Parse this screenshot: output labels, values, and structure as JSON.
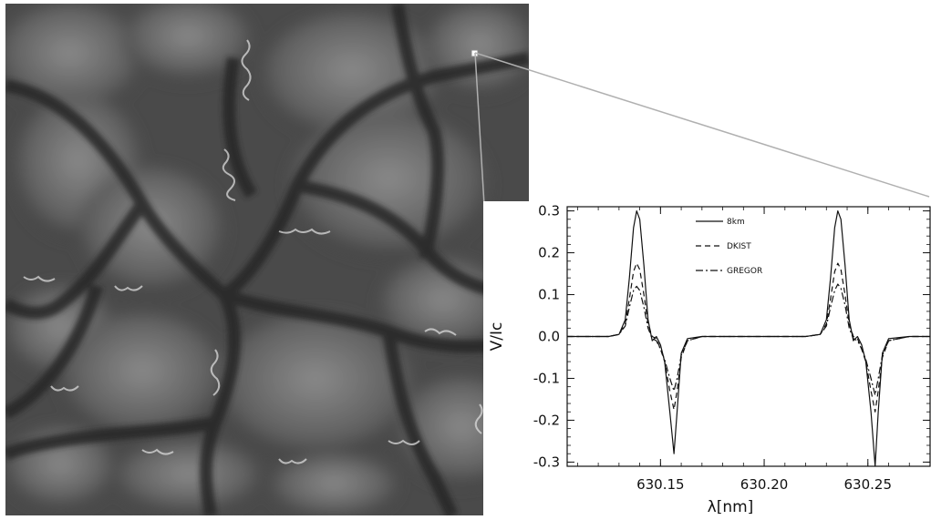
{
  "image": {
    "description_name": "solar-granulation-magnetogram"
  },
  "chart_data": {
    "type": "line",
    "title": "",
    "xlabel": "λ[nm]",
    "ylabel": "V/Ic",
    "xlim": [
      630.105,
      630.28
    ],
    "ylim": [
      -0.31,
      0.31
    ],
    "x_ticks": [
      630.15,
      630.2,
      630.25
    ],
    "x_tick_labels": [
      "630.15",
      "630.20",
      "630.25"
    ],
    "y_ticks": [
      -0.3,
      -0.2,
      -0.1,
      0.0,
      0.1,
      0.2,
      0.3
    ],
    "y_tick_labels": [
      "-0.3",
      "-0.2",
      "-0.1",
      "0.0",
      "0.1",
      "0.2",
      "0.3"
    ],
    "legend_position": "top-center",
    "grid": false,
    "series": [
      {
        "name": "8km",
        "style": "solid",
        "points": [
          [
            630.105,
            0.0
          ],
          [
            630.125,
            0.0
          ],
          [
            630.13,
            0.005
          ],
          [
            630.133,
            0.04
          ],
          [
            630.135,
            0.14
          ],
          [
            630.137,
            0.26
          ],
          [
            630.1385,
            0.3
          ],
          [
            630.14,
            0.28
          ],
          [
            630.142,
            0.17
          ],
          [
            630.144,
            0.04
          ],
          [
            630.146,
            -0.01
          ],
          [
            630.148,
            0.0
          ],
          [
            630.15,
            -0.02
          ],
          [
            630.152,
            -0.06
          ],
          [
            630.1545,
            -0.18
          ],
          [
            630.1565,
            -0.28
          ],
          [
            630.158,
            -0.18
          ],
          [
            630.16,
            -0.04
          ],
          [
            630.163,
            -0.005
          ],
          [
            630.17,
            0.0
          ],
          [
            630.22,
            0.0
          ],
          [
            630.227,
            0.005
          ],
          [
            630.23,
            0.04
          ],
          [
            630.232,
            0.14
          ],
          [
            630.234,
            0.26
          ],
          [
            630.2355,
            0.3
          ],
          [
            630.237,
            0.28
          ],
          [
            630.239,
            0.17
          ],
          [
            630.241,
            0.04
          ],
          [
            630.243,
            -0.01
          ],
          [
            630.245,
            0.0
          ],
          [
            630.247,
            -0.02
          ],
          [
            630.249,
            -0.06
          ],
          [
            630.2515,
            -0.18
          ],
          [
            630.2535,
            -0.31
          ],
          [
            630.255,
            -0.18
          ],
          [
            630.257,
            -0.04
          ],
          [
            630.26,
            -0.005
          ],
          [
            630.27,
            0.0
          ],
          [
            630.28,
            0.0
          ]
        ]
      },
      {
        "name": "DKIST",
        "style": "dashed",
        "points": [
          [
            630.105,
            0.0
          ],
          [
            630.125,
            0.0
          ],
          [
            630.13,
            0.005
          ],
          [
            630.133,
            0.03
          ],
          [
            630.135,
            0.09
          ],
          [
            630.137,
            0.155
          ],
          [
            630.1385,
            0.175
          ],
          [
            630.14,
            0.16
          ],
          [
            630.142,
            0.1
          ],
          [
            630.144,
            0.03
          ],
          [
            630.146,
            0.0
          ],
          [
            630.148,
            -0.005
          ],
          [
            630.15,
            -0.03
          ],
          [
            630.152,
            -0.06
          ],
          [
            630.1545,
            -0.13
          ],
          [
            630.1565,
            -0.175
          ],
          [
            630.158,
            -0.13
          ],
          [
            630.16,
            -0.05
          ],
          [
            630.163,
            -0.01
          ],
          [
            630.17,
            0.0
          ],
          [
            630.22,
            0.0
          ],
          [
            630.227,
            0.005
          ],
          [
            630.23,
            0.03
          ],
          [
            630.232,
            0.09
          ],
          [
            630.234,
            0.155
          ],
          [
            630.2355,
            0.175
          ],
          [
            630.237,
            0.16
          ],
          [
            630.239,
            0.1
          ],
          [
            630.241,
            0.03
          ],
          [
            630.243,
            0.0
          ],
          [
            630.245,
            -0.005
          ],
          [
            630.247,
            -0.03
          ],
          [
            630.249,
            -0.06
          ],
          [
            630.2515,
            -0.13
          ],
          [
            630.2535,
            -0.18
          ],
          [
            630.255,
            -0.13
          ],
          [
            630.257,
            -0.05
          ],
          [
            630.26,
            -0.01
          ],
          [
            630.27,
            0.0
          ],
          [
            630.28,
            0.0
          ]
        ]
      },
      {
        "name": "GREGOR",
        "style": "dash-dot",
        "points": [
          [
            630.105,
            0.0
          ],
          [
            630.125,
            0.0
          ],
          [
            630.13,
            0.005
          ],
          [
            630.133,
            0.025
          ],
          [
            630.135,
            0.07
          ],
          [
            630.137,
            0.11
          ],
          [
            630.1385,
            0.12
          ],
          [
            630.14,
            0.11
          ],
          [
            630.142,
            0.07
          ],
          [
            630.144,
            0.02
          ],
          [
            630.146,
            -0.005
          ],
          [
            630.148,
            -0.01
          ],
          [
            630.15,
            -0.03
          ],
          [
            630.152,
            -0.055
          ],
          [
            630.1545,
            -0.1
          ],
          [
            630.1565,
            -0.13
          ],
          [
            630.158,
            -0.1
          ],
          [
            630.16,
            -0.045
          ],
          [
            630.163,
            -0.01
          ],
          [
            630.17,
            0.0
          ],
          [
            630.22,
            0.0
          ],
          [
            630.227,
            0.005
          ],
          [
            630.23,
            0.025
          ],
          [
            630.232,
            0.07
          ],
          [
            630.234,
            0.11
          ],
          [
            630.2355,
            0.125
          ],
          [
            630.237,
            0.115
          ],
          [
            630.239,
            0.075
          ],
          [
            630.241,
            0.02
          ],
          [
            630.243,
            -0.005
          ],
          [
            630.245,
            -0.01
          ],
          [
            630.247,
            -0.03
          ],
          [
            630.249,
            -0.055
          ],
          [
            630.2515,
            -0.1
          ],
          [
            630.2535,
            -0.14
          ],
          [
            630.255,
            -0.1
          ],
          [
            630.257,
            -0.045
          ],
          [
            630.26,
            -0.01
          ],
          [
            630.27,
            0.0
          ],
          [
            630.28,
            0.0
          ]
        ]
      }
    ]
  }
}
